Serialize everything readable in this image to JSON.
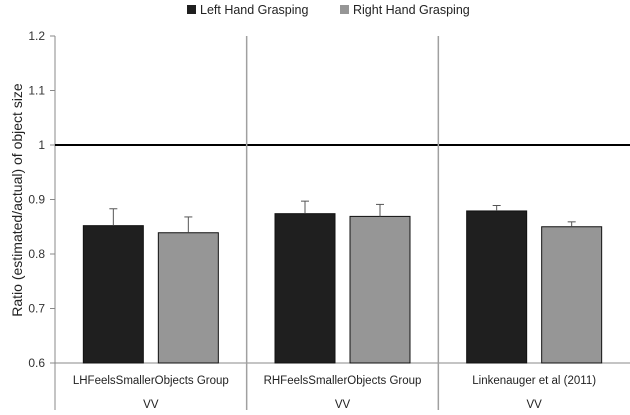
{
  "chart_data": {
    "type": "bar",
    "title": "",
    "xlabel": "",
    "ylabel": "Ratio (estimated/actual) of object size",
    "ylim": [
      0.6,
      1.2
    ],
    "yticks": [
      "0.6",
      "0.7",
      "0.8",
      "0.9",
      "1",
      "1.1",
      "1.2"
    ],
    "reference_line": 1.0,
    "legend_position": "top",
    "categories": [
      "LHFeelsSmallerObjects Group",
      "RHFeelsSmallerObjects Group",
      "Linkenauger et al (2011)"
    ],
    "group_labels": [
      "VV",
      "VV",
      "VV"
    ],
    "series": [
      {
        "name": "Left Hand Grasping",
        "color": "#1f1f1f",
        "values": [
          0.852,
          0.874,
          0.879
        ],
        "errors": [
          0.031,
          0.023,
          0.01
        ]
      },
      {
        "name": "Right Hand Grasping",
        "color": "#969696",
        "values": [
          0.839,
          0.869,
          0.85
        ],
        "errors": [
          0.029,
          0.022,
          0.009
        ]
      }
    ]
  }
}
